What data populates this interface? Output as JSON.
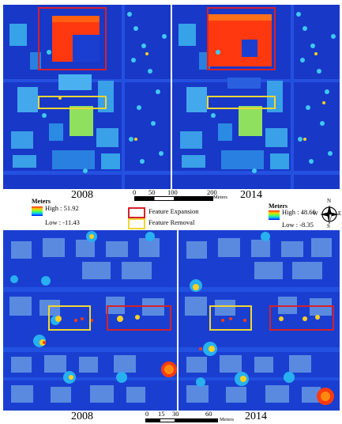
{
  "top": {
    "left_year": "2008",
    "right_year": "2014",
    "scale_ticks": [
      "0",
      "50",
      "100",
      "200"
    ],
    "scale_unit": "Meters"
  },
  "legend": {
    "left": {
      "title": "Meters",
      "high": "High : 51.92",
      "low": "Low : -11.43"
    },
    "right": {
      "title": "Meters",
      "high": "High : 48.60",
      "low": "Low : -8.35"
    },
    "expansion": {
      "label": "Feature Expansion",
      "color": "#d6212a"
    },
    "removal": {
      "label": "Feature Removal",
      "color": "#f2d632"
    },
    "north_arrow": {
      "n": "N",
      "s": "S",
      "e": "E",
      "w": "W"
    }
  },
  "bottom": {
    "left_year": "2008",
    "right_year": "2014",
    "scale_ticks": [
      "0",
      "15",
      "30",
      "60"
    ],
    "scale_unit": "Meters"
  },
  "colors": {
    "ground": "#1a3fd0",
    "low_building": "#3aa0e8",
    "mid_building": "#8adf6a",
    "tall_building": "#ff3a10",
    "tree_core": "#ff6a10"
  }
}
